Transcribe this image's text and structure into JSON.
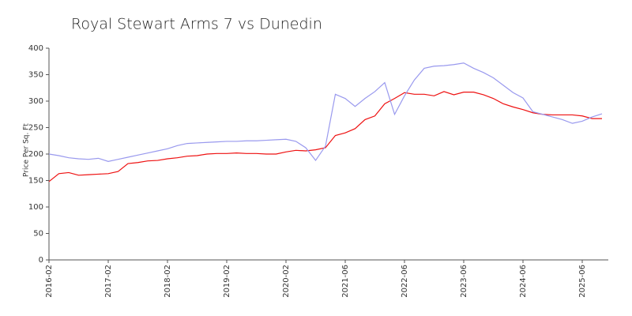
{
  "chart_data": {
    "type": "line",
    "title": "Royal Stewart Arms 7 vs Dunedin",
    "y_label": "Price Per Sq. Ft",
    "categories": [
      "2016-02",
      null,
      null,
      null,
      null,
      null,
      "2017-02",
      null,
      null,
      null,
      null,
      null,
      "2018-02",
      null,
      null,
      null,
      null,
      null,
      "2019-02",
      null,
      null,
      null,
      null,
      null,
      "2020-02",
      null,
      null,
      null,
      null,
      null,
      "2021-06",
      null,
      null,
      null,
      null,
      null,
      "2022-06",
      null,
      null,
      null,
      null,
      null,
      "2023-06",
      null,
      null,
      null,
      null,
      null,
      "2024-06",
      null,
      null,
      null,
      null,
      null,
      "2025-06",
      null,
      null
    ],
    "series": [
      {
        "color": "#ee1111",
        "values": [
          148,
          163,
          165,
          160,
          161,
          162,
          163,
          167,
          182,
          184,
          187,
          188,
          191,
          193,
          196,
          197,
          200,
          201,
          201,
          202,
          201,
          201,
          200,
          200,
          204,
          207,
          206,
          208,
          212,
          235,
          240,
          248,
          265,
          272,
          295,
          305,
          316,
          313,
          313,
          310,
          318,
          312,
          317,
          317,
          312,
          305,
          295,
          289,
          284,
          278,
          275,
          274,
          274,
          274,
          272,
          267,
          267
        ]
      },
      {
        "color": "#9999ee",
        "values": [
          200,
          197,
          193,
          191,
          190,
          192,
          186,
          190,
          194,
          198,
          202,
          206,
          210,
          216,
          220,
          221,
          222,
          223,
          224,
          224,
          225,
          225,
          226,
          227,
          228,
          224,
          212,
          188,
          215,
          313,
          305,
          290,
          305,
          318,
          335,
          275,
          310,
          340,
          362,
          366,
          367,
          369,
          372,
          362,
          354,
          344,
          330,
          316,
          306,
          280,
          275,
          270,
          265,
          258,
          262,
          270,
          276
        ]
      }
    ],
    "ylim": [
      0,
      400
    ],
    "yticks": [
      0,
      50,
      100,
      150,
      200,
      250,
      300,
      350,
      400
    ]
  }
}
